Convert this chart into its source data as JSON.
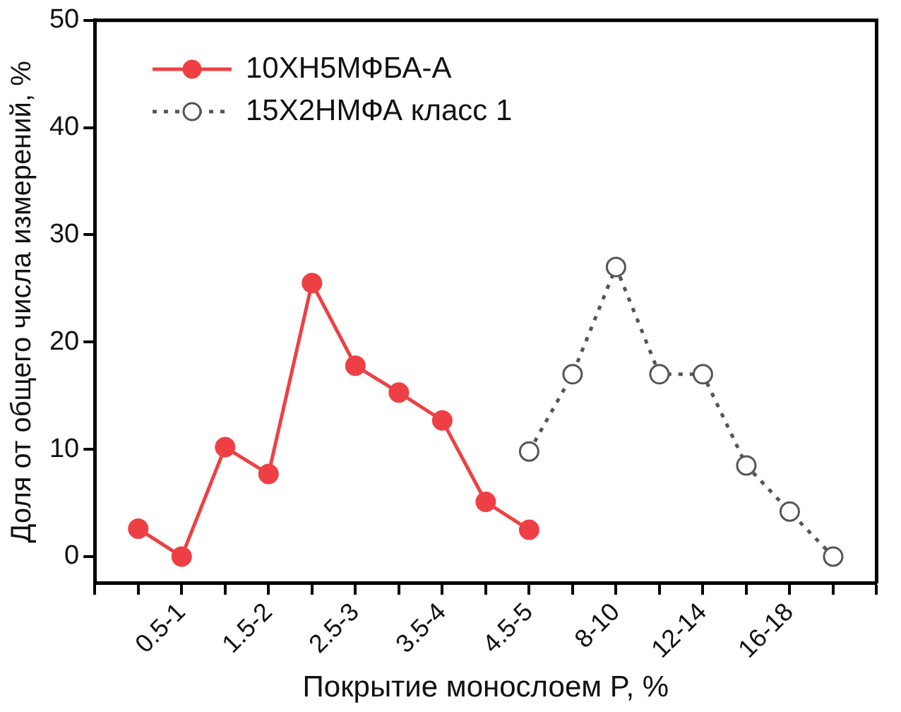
{
  "chart_data": {
    "type": "line",
    "xlabel": "Покрытие монослоем P, %",
    "ylabel": "Доля от общего числа измерений, %",
    "categories": [
      null,
      null,
      "0.5-1",
      null,
      "1.5-2",
      null,
      "2.5-3",
      null,
      "3.5-4",
      null,
      "4.5-5",
      null,
      "8-10",
      null,
      "12-14",
      null,
      "16-18",
      null,
      null
    ],
    "series": [
      {
        "name": "10ХН5МФБА-А",
        "color": "#ee4044",
        "marker": "circle",
        "line_style": "solid",
        "values": [
          null,
          2.6,
          0,
          10.2,
          7.7,
          25.5,
          17.8,
          15.3,
          12.7,
          5.1,
          2.5,
          null,
          null,
          null,
          null,
          null,
          null,
          null,
          null
        ]
      },
      {
        "name": "15Х2НМФА класс 1",
        "color": "#555555",
        "marker": "circle",
        "line_style": "dotted",
        "values": [
          null,
          null,
          null,
          null,
          null,
          null,
          null,
          null,
          null,
          null,
          9.8,
          17,
          27,
          17,
          17,
          8.5,
          4.2,
          0,
          null
        ]
      }
    ],
    "ylim": [
      -2.5,
      50
    ],
    "yticks": [
      0,
      10,
      20,
      30,
      40,
      50
    ],
    "grid": false,
    "legend": "top left"
  }
}
